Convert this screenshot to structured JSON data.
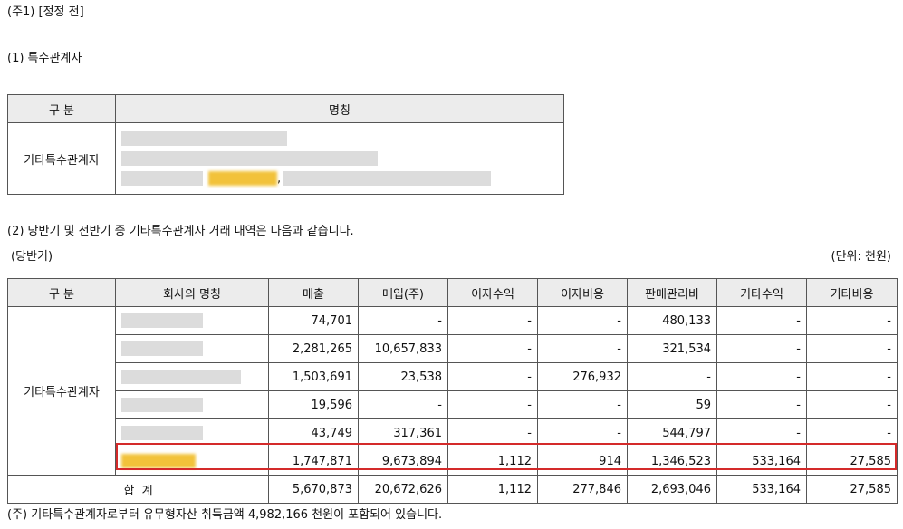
{
  "note1_title": "(주1) [정정 전]",
  "section1_title": "(1) 특수관계자",
  "table1": {
    "headers": [
      "구 분",
      "명칭"
    ],
    "category": "기타특수관계자",
    "separator": ","
  },
  "section2_title": "(2) 당반기 및 전반기 중 기타특수관계자 거래 내역은 다음과 같습니다.",
  "period_label": "(당반기)",
  "unit_label": "(단위: 천원)",
  "table2": {
    "headers": [
      "구 분",
      "회사의 명칭",
      "매출",
      "매입(주)",
      "이자수익",
      "이자비용",
      "판매관리비",
      "기타수익",
      "기타비용"
    ],
    "category": "기타특수관계자",
    "rows": [
      [
        "74,701",
        "-",
        "-",
        "-",
        "480,133",
        "-",
        "-"
      ],
      [
        "2,281,265",
        "10,657,833",
        "-",
        "-",
        "321,534",
        "-",
        "-"
      ],
      [
        "1,503,691",
        "23,538",
        "-",
        "276,932",
        "-",
        "-",
        "-"
      ],
      [
        "19,596",
        "-",
        "-",
        "-",
        "59",
        "-",
        "-"
      ],
      [
        "43,749",
        "317,361",
        "-",
        "-",
        "544,797",
        "-",
        "-"
      ],
      [
        "1,747,871",
        "9,673,894",
        "1,112",
        "914",
        "1,346,523",
        "533,164",
        "27,585"
      ]
    ],
    "total_label": "합  계",
    "total": [
      "5,670,873",
      "20,672,626",
      "1,112",
      "277,846",
      "2,693,046",
      "533,164",
      "27,585"
    ]
  },
  "footnote": "(주) 기타특수관계자로부터 유무형자산 취득금액 4,982,166 천원이 포함되어 있습니다."
}
